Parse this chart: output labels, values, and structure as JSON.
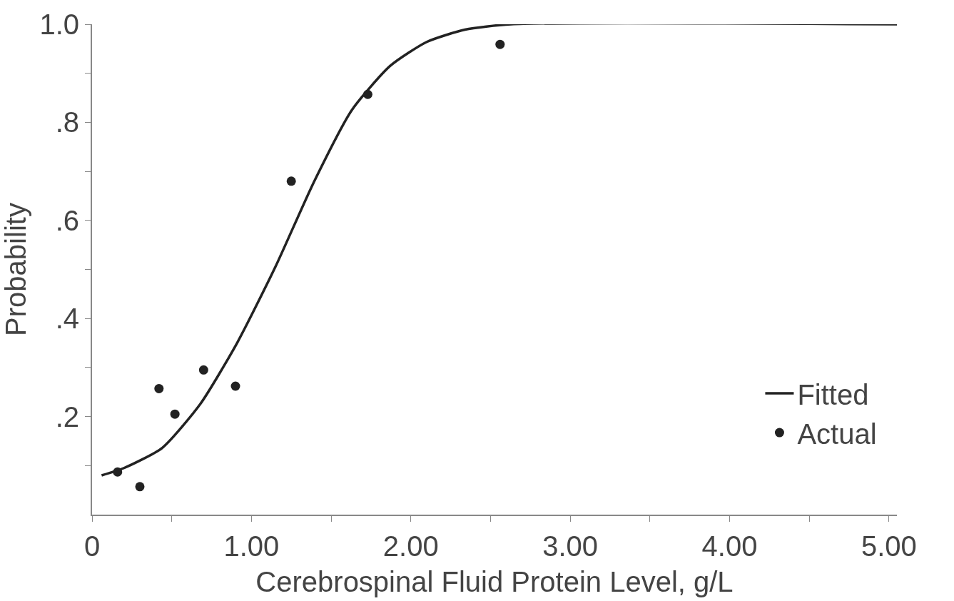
{
  "chart_data": {
    "type": "scatter",
    "xlabel": "Cerebrospinal Fluid Protein Level, g/L",
    "ylabel": "Probability",
    "xlim": [
      0,
      5.05
    ],
    "ylim": [
      0,
      1.0
    ],
    "xticks": [
      0,
      {
        "value": 0.5,
        "label": null
      },
      {
        "value": 1,
        "label": "1.00"
      },
      {
        "value": 1.5,
        "label": null
      },
      {
        "value": 2,
        "label": "2.00"
      },
      {
        "value": 2.5,
        "label": null
      },
      {
        "value": 3,
        "label": "3.00"
      },
      {
        "value": 3.5,
        "label": null
      },
      {
        "value": 4,
        "label": "4.00"
      },
      {
        "value": 4.5,
        "label": null
      },
      {
        "value": 5,
        "label": "5.00"
      }
    ],
    "yticks": [
      {
        "value": 0.1,
        "label": null
      },
      {
        "value": 0.2,
        "label": ".2"
      },
      {
        "value": 0.3,
        "label": null
      },
      {
        "value": 0.4,
        "label": ".4"
      },
      {
        "value": 0.5,
        "label": null
      },
      {
        "value": 0.6,
        "label": ".6"
      },
      {
        "value": 0.7,
        "label": null
      },
      {
        "value": 0.8,
        "label": ".8"
      },
      {
        "value": 0.9,
        "label": null
      },
      {
        "value": 1.0,
        "label": "1.0"
      }
    ],
    "legend": "bottom right",
    "series": [
      {
        "name": "Fitted",
        "type": "line",
        "color": "#222222",
        "marker": "none",
        "line_style": "solid",
        "x": [
          0.06,
          0.2,
          0.44,
          0.68,
          0.91,
          1.15,
          1.39,
          1.63,
          1.87,
          2.1,
          2.34,
          2.63,
          5.05
        ],
        "values": [
          0.08,
          0.095,
          0.136,
          0.226,
          0.35,
          0.505,
          0.677,
          0.825,
          0.915,
          0.964,
          0.989,
          1.0,
          1.0
        ]
      },
      {
        "name": "Actual",
        "color": "#222222",
        "marker": "circle",
        "x": [
          0.16,
          0.3,
          0.42,
          0.52,
          0.7,
          0.9,
          1.25,
          1.73,
          2.56
        ],
        "values": [
          0.087,
          0.057,
          0.257,
          0.205,
          0.295,
          0.262,
          0.68,
          0.857,
          0.959
        ]
      }
    ]
  }
}
